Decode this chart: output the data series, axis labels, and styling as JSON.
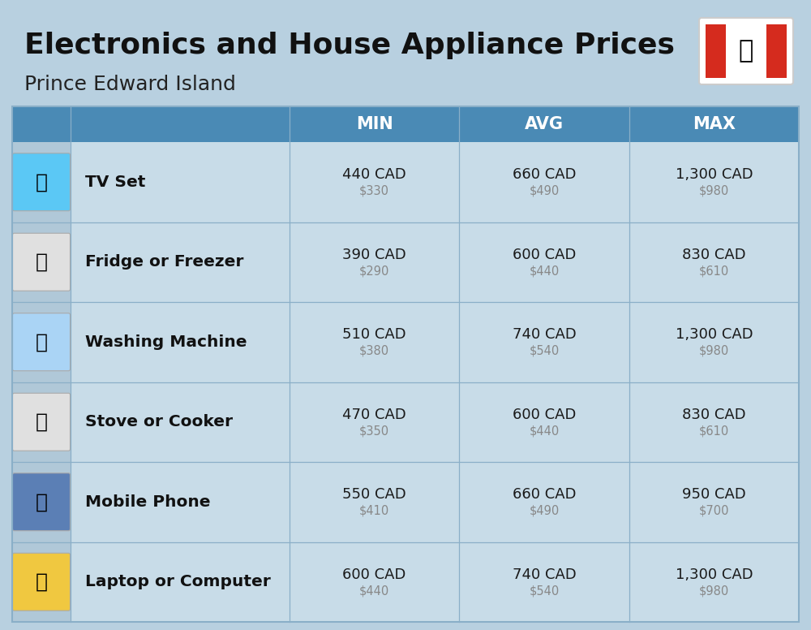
{
  "title": "Electronics and House Appliance Prices",
  "subtitle": "Prince Edward Island",
  "background_color": "#b8d0e0",
  "header_color": "#4a8ab5",
  "header_text_color": "#ffffff",
  "row_color": "#c8dce8",
  "icon_bg_color": "#b0c8d8",
  "cell_text_color": "#1a1a1a",
  "sub_text_color": "#888888",
  "divider_color": "#8aafc8",
  "name_text_color": "#111111",
  "columns": [
    "MIN",
    "AVG",
    "MAX"
  ],
  "rows": [
    {
      "name": "TV Set",
      "min_cad": "440 CAD",
      "min_usd": "$330",
      "avg_cad": "660 CAD",
      "avg_usd": "$490",
      "max_cad": "1,300 CAD",
      "max_usd": "$980"
    },
    {
      "name": "Fridge or Freezer",
      "min_cad": "390 CAD",
      "min_usd": "$290",
      "avg_cad": "600 CAD",
      "avg_usd": "$440",
      "max_cad": "830 CAD",
      "max_usd": "$610"
    },
    {
      "name": "Washing Machine",
      "min_cad": "510 CAD",
      "min_usd": "$380",
      "avg_cad": "740 CAD",
      "avg_usd": "$540",
      "max_cad": "1,300 CAD",
      "max_usd": "$980"
    },
    {
      "name": "Stove or Cooker",
      "min_cad": "470 CAD",
      "min_usd": "$350",
      "avg_cad": "600 CAD",
      "avg_usd": "$440",
      "max_cad": "830 CAD",
      "max_usd": "$610"
    },
    {
      "name": "Mobile Phone",
      "min_cad": "550 CAD",
      "min_usd": "$410",
      "avg_cad": "660 CAD",
      "avg_usd": "$490",
      "max_cad": "950 CAD",
      "max_usd": "$700"
    },
    {
      "name": "Laptop or Computer",
      "min_cad": "600 CAD",
      "min_usd": "$440",
      "avg_cad": "740 CAD",
      "avg_usd": "$540",
      "max_cad": "1,300 CAD",
      "max_usd": "$980"
    }
  ]
}
